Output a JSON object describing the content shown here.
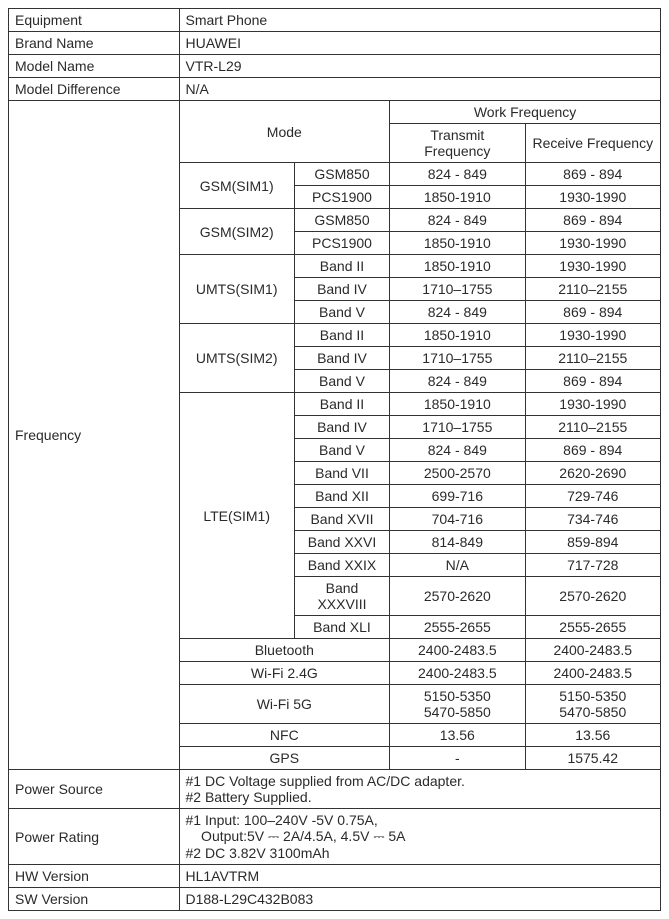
{
  "rows": {
    "equipment": {
      "label": "Equipment",
      "value": "Smart Phone"
    },
    "brand": {
      "label": "Brand Name",
      "value": "HUAWEI"
    },
    "model": {
      "label": "Model Name",
      "value": "VTR-L29"
    },
    "diff": {
      "label": "Model Difference",
      "value": "N/A"
    },
    "power_src": {
      "label": "Power Source",
      "value": "#1 DC Voltage supplied from AC/DC adapter.\n#2 Battery Supplied."
    },
    "power_rat": {
      "label": "Power Rating",
      "line1": "#1 Input: 100–240V -5V 0.75A,",
      "line2": "    Output:5V ⎓ 2A/4.5A, 4.5V ⎓ 5A",
      "line3": "#2 DC 3.82V 3100mAh"
    },
    "hw": {
      "label": "HW Version",
      "value": "HL1AVTRM"
    },
    "sw": {
      "label": "SW Version",
      "value": "D188-L29C432B083"
    }
  },
  "freq": {
    "header": "Frequency",
    "mode": "Mode",
    "workfreq": "Work Frequency",
    "tx": "Transmit Frequency",
    "rx": "Receive Frequency",
    "groups": [
      {
        "name": "GSM(SIM1)",
        "bands": [
          {
            "b": "GSM850",
            "tx": "824 - 849",
            "rx": "869 - 894"
          },
          {
            "b": "PCS1900",
            "tx": "1850-1910",
            "rx": "1930-1990"
          }
        ]
      },
      {
        "name": "GSM(SIM2)",
        "bands": [
          {
            "b": "GSM850",
            "tx": "824 - 849",
            "rx": "869 - 894"
          },
          {
            "b": "PCS1900",
            "tx": "1850-1910",
            "rx": "1930-1990"
          }
        ]
      },
      {
        "name": "UMTS(SIM1)",
        "bands": [
          {
            "b": "Band II",
            "tx": "1850-1910",
            "rx": "1930-1990"
          },
          {
            "b": "Band IV",
            "tx": "1710–1755",
            "rx": "2110–2155"
          },
          {
            "b": "Band V",
            "tx": "824 - 849",
            "rx": "869 - 894"
          }
        ]
      },
      {
        "name": "UMTS(SIM2)",
        "bands": [
          {
            "b": "Band II",
            "tx": "1850-1910",
            "rx": "1930-1990"
          },
          {
            "b": "Band IV",
            "tx": "1710–1755",
            "rx": "2110–2155"
          },
          {
            "b": "Band V",
            "tx": "824 - 849",
            "rx": "869 - 894"
          }
        ]
      },
      {
        "name": "LTE(SIM1)",
        "bands": [
          {
            "b": "Band II",
            "tx": "1850-1910",
            "rx": "1930-1990"
          },
          {
            "b": "Band IV",
            "tx": "1710–1755",
            "rx": "2110–2155"
          },
          {
            "b": "Band V",
            "tx": "824 - 849",
            "rx": "869 - 894"
          },
          {
            "b": "Band VII",
            "tx": "2500-2570",
            "rx": "2620-2690"
          },
          {
            "b": "Band XII",
            "tx": "699-716",
            "rx": "729-746"
          },
          {
            "b": "Band XVII",
            "tx": "704-716",
            "rx": "734-746"
          },
          {
            "b": "Band XXVI",
            "tx": "814-849",
            "rx": "859-894"
          },
          {
            "b": "Band XXIX",
            "tx": "N/A",
            "rx": "717-728"
          },
          {
            "b": "Band XXXVIII",
            "tx": "2570-2620",
            "rx": "2570-2620"
          },
          {
            "b": "Band XLI",
            "tx": "2555-2655",
            "rx": "2555-2655"
          }
        ]
      }
    ],
    "simple": [
      {
        "name": "Bluetooth",
        "tx": "2400-2483.5",
        "rx": "2400-2483.5"
      },
      {
        "name": "Wi-Fi 2.4G",
        "tx": "2400-2483.5",
        "rx": "2400-2483.5"
      },
      {
        "name": "Wi-Fi 5G",
        "tx": "5150-5350\n5470-5850",
        "rx": "5150-5350\n5470-5850"
      },
      {
        "name": "NFC",
        "tx": "13.56",
        "rx": "13.56"
      },
      {
        "name": "GPS",
        "tx": "-",
        "rx": "1575.42"
      }
    ]
  }
}
